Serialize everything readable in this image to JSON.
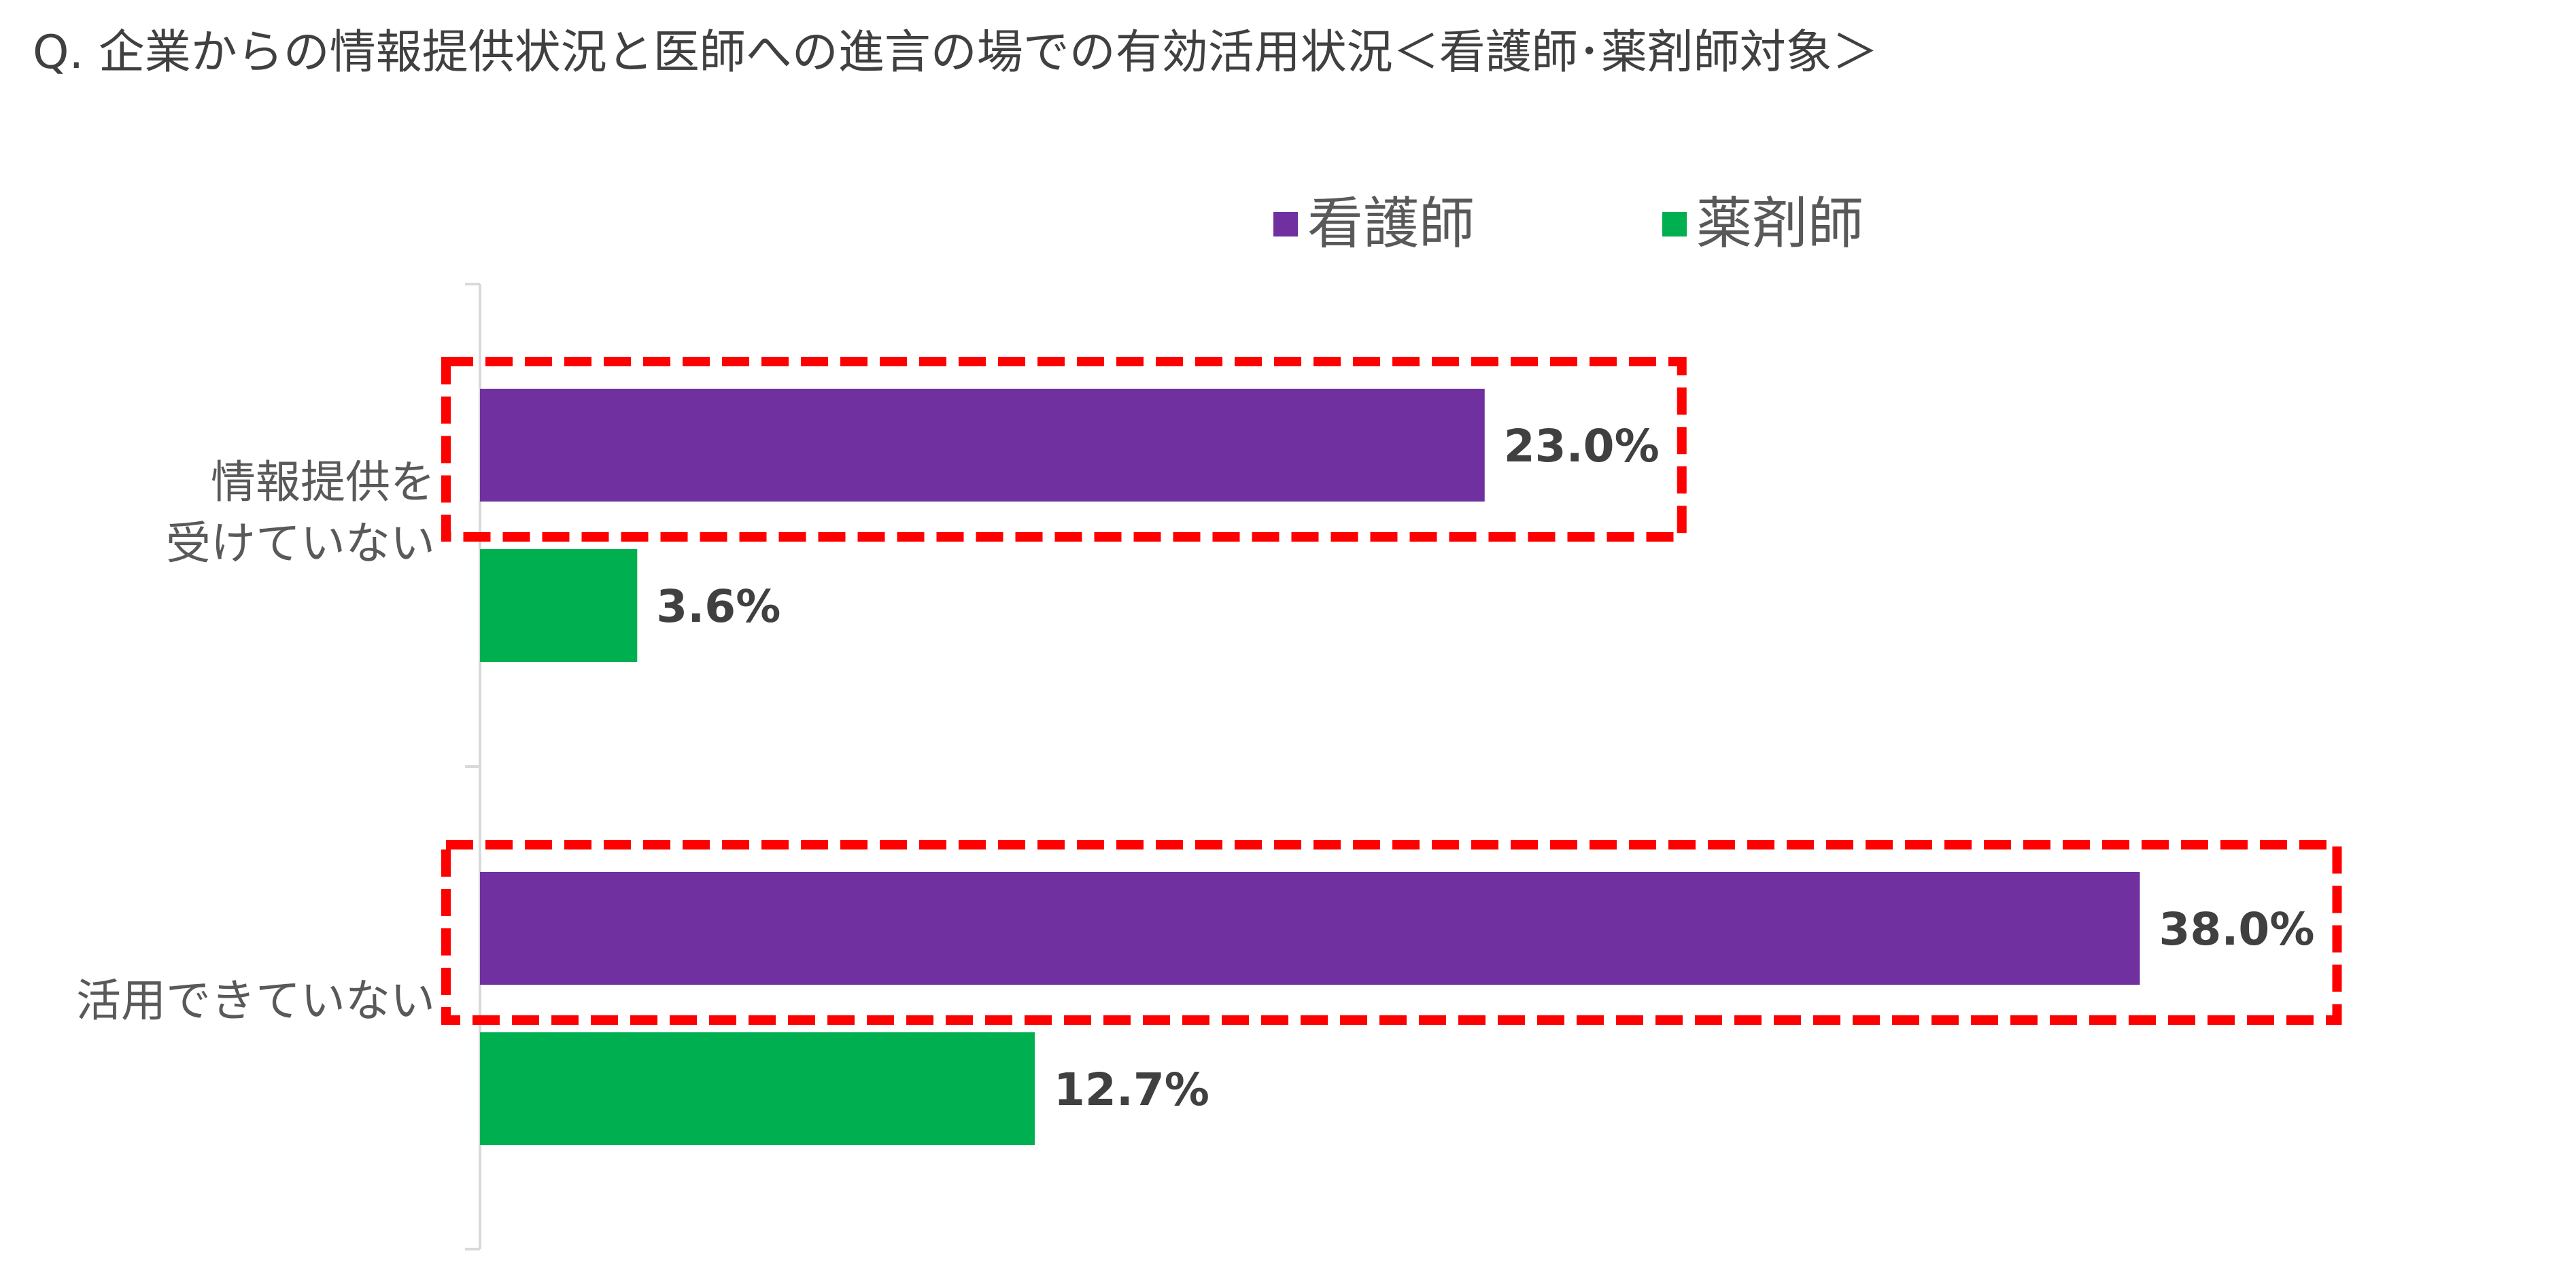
{
  "title": "Q. 企業からの情報提供状況と医師への進言の場での有効活用状況＜看護師･薬剤師対象＞",
  "colors": {
    "nurse": "#7030a0",
    "pharmacist": "#00b050",
    "highlight": "#ff0000",
    "axis": "#d9d9d9",
    "data_label": "#404040"
  },
  "chart_data": {
    "type": "bar",
    "orientation": "horizontal",
    "title": "",
    "categories": [
      "情報提供を受けていない",
      "活用できていない"
    ],
    "category_display": [
      [
        "情報提供を",
        "受けていない"
      ],
      [
        "活用できていない"
      ]
    ],
    "series": [
      {
        "name": "看護師",
        "values": [
          23.0,
          38.0
        ],
        "labels": [
          "23.0%",
          "38.0%"
        ],
        "color": "#7030a0"
      },
      {
        "name": "薬剤師",
        "values": [
          3.6,
          12.7
        ],
        "labels": [
          "3.6%",
          "12.7%"
        ],
        "color": "#00b050"
      }
    ],
    "xlim": [
      0,
      40
    ],
    "unit": "%",
    "grid": false,
    "legend": "top",
    "highlighted": [
      {
        "series": "看護師",
        "category": "情報提供を受けていない"
      },
      {
        "series": "看護師",
        "category": "活用できていない"
      }
    ]
  }
}
